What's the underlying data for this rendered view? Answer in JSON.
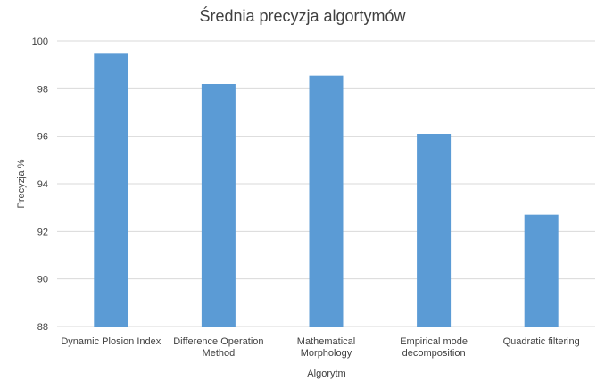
{
  "chart_data": {
    "type": "bar",
    "title": "Średnia precyzja algortymów",
    "xlabel": "Algorytm",
    "ylabel": "Precyzja %",
    "categories": [
      [
        "Dynamic Plosion Index"
      ],
      [
        "Difference Operation",
        "Method"
      ],
      [
        "Mathematical",
        "Morphology"
      ],
      [
        "Empirical mode",
        "decomposition"
      ],
      [
        "Quadratic filtering"
      ]
    ],
    "values": [
      99.5,
      98.2,
      98.55,
      96.1,
      92.7
    ],
    "ylim": [
      88,
      100
    ],
    "yticks": [
      88,
      90,
      92,
      94,
      96,
      98,
      100
    ],
    "grid": true,
    "legend": "none",
    "bar_color": "#5b9bd5"
  }
}
